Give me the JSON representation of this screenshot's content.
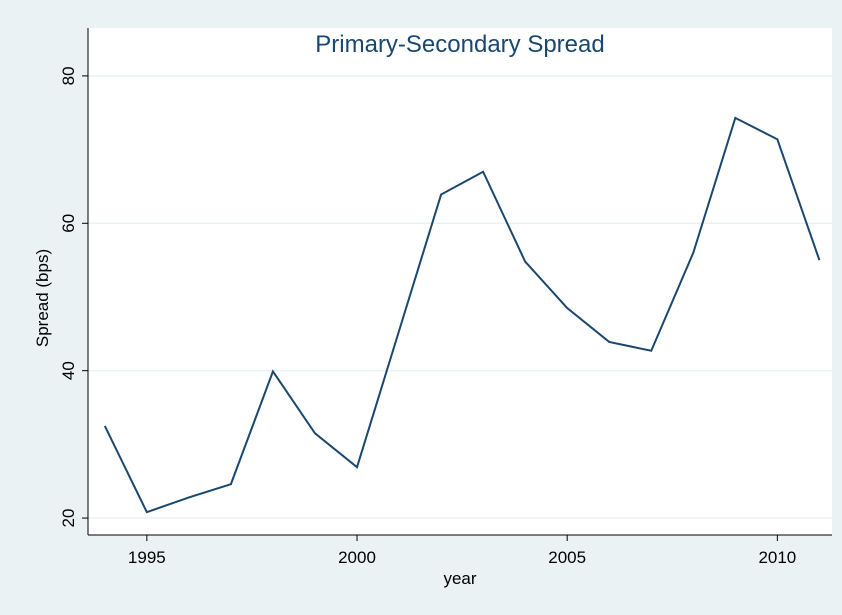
{
  "chart_data": {
    "type": "line",
    "title": "Primary-Secondary Spread",
    "x_label": "year",
    "y_label": "Spread (bps)",
    "x": [
      1994,
      1995,
      1996,
      1997,
      1998,
      1999,
      2000,
      2001,
      2002,
      2003,
      2004,
      2005,
      2006,
      2007,
      2008,
      2009,
      2010,
      2011
    ],
    "series": [
      {
        "name": "Spread",
        "color": "#1a476f",
        "values": [
          32.5,
          20.8,
          22.8,
          24.6,
          39.9,
          31.5,
          26.9,
          45.4,
          63.9,
          67.0,
          54.8,
          48.5,
          43.9,
          42.7,
          56.0,
          74.3,
          71.4,
          55.0
        ]
      }
    ],
    "xlim": [
      1993.6,
      2011.3
    ],
    "xticks": [
      1995,
      2000,
      2005,
      2010
    ],
    "ylim": [
      17.7,
      86.5
    ],
    "yticks": [
      20,
      40,
      60,
      80
    ],
    "grid": true
  }
}
